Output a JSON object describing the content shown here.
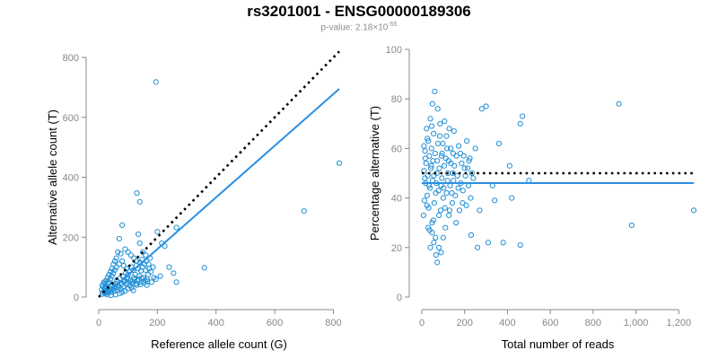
{
  "header": {
    "title": "rs3201001 - ENSG00000189306",
    "subtitle_prefix": "p-value: 2.18×10",
    "subtitle_exp": "-55"
  },
  "colors": {
    "points": "#1f8fd6",
    "fit": "#2c8fe3",
    "reference": "#000000",
    "axis": "#888888"
  },
  "chart_data": [
    {
      "type": "scatter",
      "xlabel": "Reference allele count (G)",
      "ylabel": "Alternative allele count (T)",
      "xlim": [
        0,
        820
      ],
      "ylim": [
        0,
        800
      ],
      "xticks": [
        0,
        200,
        400,
        600,
        800
      ],
      "yticks": [
        0,
        200,
        400,
        600,
        800
      ],
      "xtick_labels": [
        "0",
        "200",
        "400",
        "600",
        "800"
      ],
      "ytick_labels": [
        "0",
        "200",
        "400",
        "600",
        "800"
      ],
      "reference_line": {
        "style": "dotted",
        "from": [
          0,
          0
        ],
        "to": [
          820,
          820
        ]
      },
      "fit_line": {
        "style": "solid",
        "from": [
          20,
          5
        ],
        "to": [
          820,
          695
        ]
      },
      "points": [
        [
          195,
          718
        ],
        [
          820,
          447
        ],
        [
          700,
          287
        ],
        [
          130,
          347
        ],
        [
          140,
          318
        ],
        [
          360,
          98
        ],
        [
          265,
          232
        ],
        [
          200,
          218
        ],
        [
          225,
          170
        ],
        [
          215,
          180
        ],
        [
          240,
          100
        ],
        [
          255,
          80
        ],
        [
          265,
          50
        ],
        [
          210,
          70
        ],
        [
          195,
          60
        ],
        [
          180,
          50
        ],
        [
          175,
          130
        ],
        [
          160,
          140
        ],
        [
          170,
          110
        ],
        [
          150,
          150
        ],
        [
          140,
          180
        ],
        [
          135,
          210
        ],
        [
          80,
          240
        ],
        [
          70,
          195
        ],
        [
          75,
          145
        ],
        [
          90,
          160
        ],
        [
          100,
          150
        ],
        [
          110,
          140
        ],
        [
          120,
          130
        ],
        [
          130,
          120
        ],
        [
          140,
          115
        ],
        [
          150,
          100
        ],
        [
          160,
          90
        ],
        [
          165,
          60
        ],
        [
          145,
          50
        ],
        [
          130,
          40
        ],
        [
          120,
          65
        ],
        [
          100,
          75
        ],
        [
          95,
          95
        ],
        [
          85,
          105
        ],
        [
          80,
          120
        ],
        [
          70,
          110
        ],
        [
          60,
          100
        ],
        [
          55,
          90
        ],
        [
          50,
          80
        ],
        [
          45,
          70
        ],
        [
          40,
          60
        ],
        [
          35,
          50
        ],
        [
          30,
          45
        ],
        [
          25,
          35
        ],
        [
          20,
          30
        ],
        [
          18,
          20
        ],
        [
          15,
          15
        ],
        [
          12,
          10
        ],
        [
          10,
          25
        ],
        [
          22,
          12
        ],
        [
          28,
          22
        ],
        [
          33,
          18
        ],
        [
          38,
          28
        ],
        [
          42,
          35
        ],
        [
          48,
          40
        ],
        [
          52,
          30
        ],
        [
          58,
          45
        ],
        [
          62,
          55
        ],
        [
          66,
          38
        ],
        [
          72,
          62
        ],
        [
          76,
          48
        ],
        [
          82,
          70
        ],
        [
          88,
          58
        ],
        [
          92,
          80
        ],
        [
          98,
          66
        ],
        [
          104,
          85
        ],
        [
          108,
          55
        ],
        [
          112,
          100
        ],
        [
          118,
          90
        ],
        [
          124,
          75
        ],
        [
          128,
          105
        ],
        [
          134,
          95
        ],
        [
          138,
          70
        ],
        [
          144,
          88
        ],
        [
          148,
          125
        ],
        [
          152,
          65
        ],
        [
          156,
          110
        ],
        [
          162,
          120
        ],
        [
          168,
          75
        ],
        [
          172,
          95
        ],
        [
          178,
          85
        ],
        [
          185,
          100
        ],
        [
          188,
          65
        ],
        [
          60,
          130
        ],
        [
          65,
          150
        ],
        [
          55,
          120
        ],
        [
          50,
          110
        ],
        [
          45,
          95
        ],
        [
          40,
          85
        ],
        [
          35,
          75
        ],
        [
          30,
          65
        ],
        [
          25,
          55
        ],
        [
          20,
          45
        ],
        [
          15,
          35
        ],
        [
          12,
          40
        ],
        [
          18,
          50
        ],
        [
          24,
          28
        ],
        [
          28,
          8
        ],
        [
          32,
          14
        ],
        [
          36,
          22
        ],
        [
          44,
          16
        ],
        [
          46,
          26
        ],
        [
          54,
          20
        ],
        [
          56,
          36
        ],
        [
          64,
          24
        ],
        [
          68,
          32
        ],
        [
          74,
          28
        ],
        [
          78,
          42
        ],
        [
          84,
          36
        ],
        [
          86,
          52
        ],
        [
          94,
          44
        ],
        [
          96,
          60
        ],
        [
          102,
          48
        ],
        [
          106,
          38
        ],
        [
          114,
          52
        ],
        [
          116,
          46
        ],
        [
          122,
          58
        ],
        [
          126,
          44
        ],
        [
          132,
          54
        ],
        [
          136,
          60
        ],
        [
          142,
          42
        ],
        [
          146,
          62
        ],
        [
          154,
          48
        ],
        [
          158,
          56
        ],
        [
          164,
          40
        ],
        [
          166,
          52
        ],
        [
          112,
          30
        ],
        [
          118,
          22
        ],
        [
          90,
          20
        ],
        [
          100,
          28
        ],
        [
          72,
          12
        ],
        [
          80,
          16
        ],
        [
          58,
          8
        ],
        [
          42,
          6
        ]
      ]
    },
    {
      "type": "scatter",
      "xlabel": "Total number of reads",
      "ylabel": "Percentage alternative (T)",
      "xlim": [
        0,
        1270
      ],
      "ylim": [
        0,
        100
      ],
      "xticks": [
        0,
        200,
        400,
        600,
        800,
        1000,
        1200
      ],
      "yticks": [
        0,
        20,
        40,
        60,
        80,
        100
      ],
      "xtick_labels": [
        "0",
        "200",
        "400",
        "600",
        "800",
        "1,000",
        "1,200"
      ],
      "ytick_labels": [
        "0",
        "20",
        "40",
        "60",
        "80",
        "100"
      ],
      "reference_line": {
        "style": "dotted",
        "y": 50
      },
      "fit_line": {
        "style": "solid",
        "y": 46
      },
      "points": [
        [
          920,
          78
        ],
        [
          980,
          29
        ],
        [
          1270,
          35
        ],
        [
          460,
          70
        ],
        [
          470,
          73
        ],
        [
          500,
          47
        ],
        [
          460,
          21
        ],
        [
          420,
          40
        ],
        [
          410,
          53
        ],
        [
          380,
          22
        ],
        [
          360,
          62
        ],
        [
          340,
          39
        ],
        [
          330,
          45
        ],
        [
          310,
          22
        ],
        [
          300,
          77
        ],
        [
          280,
          76
        ],
        [
          270,
          35
        ],
        [
          260,
          20
        ],
        [
          250,
          60
        ],
        [
          240,
          48
        ],
        [
          230,
          25
        ],
        [
          220,
          55
        ],
        [
          210,
          63
        ],
        [
          200,
          52
        ],
        [
          190,
          38
        ],
        [
          180,
          58
        ],
        [
          170,
          44
        ],
        [
          160,
          30
        ],
        [
          150,
          67
        ],
        [
          145,
          50
        ],
        [
          140,
          42
        ],
        [
          135,
          60
        ],
        [
          130,
          35
        ],
        [
          125,
          55
        ],
        [
          120,
          47
        ],
        [
          115,
          65
        ],
        [
          110,
          28
        ],
        [
          105,
          53
        ],
        [
          100,
          40
        ],
        [
          95,
          58
        ],
        [
          90,
          45
        ],
        [
          85,
          70
        ],
        [
          80,
          33
        ],
        [
          75,
          62
        ],
        [
          70,
          50
        ],
        [
          65,
          42
        ],
        [
          60,
          83
        ],
        [
          58,
          38
        ],
        [
          55,
          66
        ],
        [
          52,
          55
        ],
        [
          50,
          47
        ],
        [
          48,
          30
        ],
        [
          45,
          60
        ],
        [
          42,
          52
        ],
        [
          40,
          72
        ],
        [
          38,
          44
        ],
        [
          35,
          57
        ],
        [
          32,
          36
        ],
        [
          30,
          63
        ],
        [
          28,
          49
        ],
        [
          25,
          41
        ],
        [
          22,
          68
        ],
        [
          20,
          54
        ],
        [
          18,
          46
        ],
        [
          15,
          59
        ],
        [
          12,
          39
        ],
        [
          10,
          51
        ],
        [
          8,
          33
        ],
        [
          10,
          61
        ],
        [
          14,
          48
        ],
        [
          16,
          56
        ],
        [
          24,
          37
        ],
        [
          26,
          64
        ],
        [
          34,
          45
        ],
        [
          36,
          27
        ],
        [
          44,
          53
        ],
        [
          46,
          69
        ],
        [
          54,
          31
        ],
        [
          56,
          49
        ],
        [
          62,
          58
        ],
        [
          64,
          24
        ],
        [
          68,
          46
        ],
        [
          72,
          55
        ],
        [
          74,
          76
        ],
        [
          78,
          43
        ],
        [
          82,
          52
        ],
        [
          84,
          65
        ],
        [
          88,
          35
        ],
        [
          92,
          57
        ],
        [
          94,
          48
        ],
        [
          98,
          62
        ],
        [
          102,
          44
        ],
        [
          106,
          71
        ],
        [
          108,
          36
        ],
        [
          112,
          56
        ],
        [
          116,
          42
        ],
        [
          118,
          60
        ],
        [
          122,
          50
        ],
        [
          126,
          33
        ],
        [
          128,
          68
        ],
        [
          132,
          45
        ],
        [
          136,
          54
        ],
        [
          142,
          38
        ],
        [
          146,
          58
        ],
        [
          148,
          47
        ],
        [
          152,
          53
        ],
        [
          156,
          41
        ],
        [
          162,
          57
        ],
        [
          166,
          49
        ],
        [
          172,
          61
        ],
        [
          176,
          35
        ],
        [
          182,
          46
        ],
        [
          186,
          54
        ],
        [
          192,
          43
        ],
        [
          196,
          57
        ],
        [
          204,
          49
        ],
        [
          208,
          37
        ],
        [
          214,
          52
        ],
        [
          218,
          45
        ],
        [
          224,
          56
        ],
        [
          228,
          40
        ],
        [
          234,
          50
        ],
        [
          66,
          17
        ],
        [
          72,
          14
        ],
        [
          80,
          20
        ],
        [
          90,
          18
        ],
        [
          100,
          24
        ],
        [
          56,
          22
        ],
        [
          48,
          26
        ],
        [
          40,
          20
        ],
        [
          30,
          28
        ],
        [
          50,
          78
        ]
      ]
    }
  ]
}
